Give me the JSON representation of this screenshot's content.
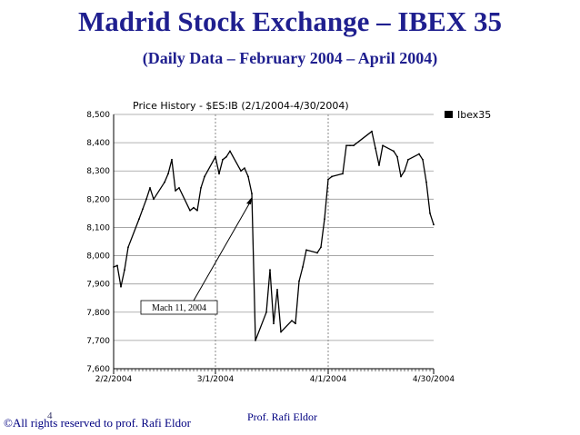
{
  "slide": {
    "title": "Madrid Stock Exchange – IBEX 35",
    "subtitle": "(Daily Data – February 2004 – April 2004)",
    "copyright": "©All rights reserved to prof. Rafi Eldor",
    "slide_number": "4",
    "author": "Prof. Rafi Eldor",
    "title_color": "#1f1f8f",
    "footer_color": "#000080"
  },
  "chart_data": {
    "type": "line",
    "title": "Price History - $ES:IB (2/1/2004-4/30/2004)",
    "legend": "top-right",
    "series": [
      {
        "name": "Ibex35",
        "color": "#000000",
        "x": [
          "2004-02-02",
          "2004-02-03",
          "2004-02-04",
          "2004-02-05",
          "2004-02-06",
          "2004-02-09",
          "2004-02-10",
          "2004-02-11",
          "2004-02-12",
          "2004-02-13",
          "2004-02-16",
          "2004-02-17",
          "2004-02-18",
          "2004-02-19",
          "2004-02-20",
          "2004-02-23",
          "2004-02-24",
          "2004-02-25",
          "2004-02-26",
          "2004-02-27",
          "2004-03-01",
          "2004-03-02",
          "2004-03-03",
          "2004-03-04",
          "2004-03-05",
          "2004-03-08",
          "2004-03-09",
          "2004-03-10",
          "2004-03-11",
          "2004-03-12",
          "2004-03-15",
          "2004-03-16",
          "2004-03-17",
          "2004-03-18",
          "2004-03-19",
          "2004-03-22",
          "2004-03-23",
          "2004-03-24",
          "2004-03-25",
          "2004-03-26",
          "2004-03-29",
          "2004-03-30",
          "2004-03-31",
          "2004-04-01",
          "2004-04-02",
          "2004-04-05",
          "2004-04-06",
          "2004-04-07",
          "2004-04-08",
          "2004-04-13",
          "2004-04-14",
          "2004-04-15",
          "2004-04-16",
          "2004-04-19",
          "2004-04-20",
          "2004-04-21",
          "2004-04-22",
          "2004-04-23",
          "2004-04-26",
          "2004-04-27",
          "2004-04-28",
          "2004-04-29",
          "2004-04-30"
        ],
        "values": [
          7960,
          7965,
          7890,
          7950,
          8030,
          8130,
          8165,
          8200,
          8240,
          8200,
          8260,
          8290,
          8340,
          8230,
          8240,
          8160,
          8170,
          8160,
          8240,
          8280,
          8350,
          8290,
          8340,
          8350,
          8370,
          8300,
          8310,
          8280,
          8220,
          7700,
          7800,
          7950,
          7760,
          7880,
          7730,
          7770,
          7760,
          7910,
          7960,
          8020,
          8010,
          8030,
          8130,
          8270,
          8280,
          8290,
          8390,
          8390,
          8390,
          8440,
          8380,
          8320,
          8390,
          8370,
          8350,
          8280,
          8300,
          8340,
          8360,
          8340,
          8260,
          8150,
          8110
        ]
      }
    ],
    "ylim": [
      7600,
      8500
    ],
    "y_ticks": [
      7600,
      7700,
      7800,
      7900,
      8000,
      8100,
      8200,
      8300,
      8400,
      8500
    ],
    "y_tick_labels": [
      "7,600",
      "7,700",
      "7,800",
      "7,900",
      "8,000",
      "8,100",
      "8,200",
      "8,300",
      "8,400",
      "8,500"
    ],
    "xlim": [
      "2004-02-02",
      "2004-04-30"
    ],
    "x_ticks": [
      "2004-02-02",
      "2004-03-01",
      "2004-04-01",
      "2004-04-30"
    ],
    "x_tick_labels": [
      "2/2/2004",
      "3/1/2004",
      "4/1/2004",
      "4/30/2004"
    ],
    "vertical_dotted_gridlines_at": [
      "2004-03-01",
      "2004-04-01"
    ],
    "grid": "horizontal lines, dotted verticals at month starts",
    "annotations": [
      {
        "text": "Mach 11, 2004",
        "points_to": "2004-03-11"
      }
    ]
  }
}
